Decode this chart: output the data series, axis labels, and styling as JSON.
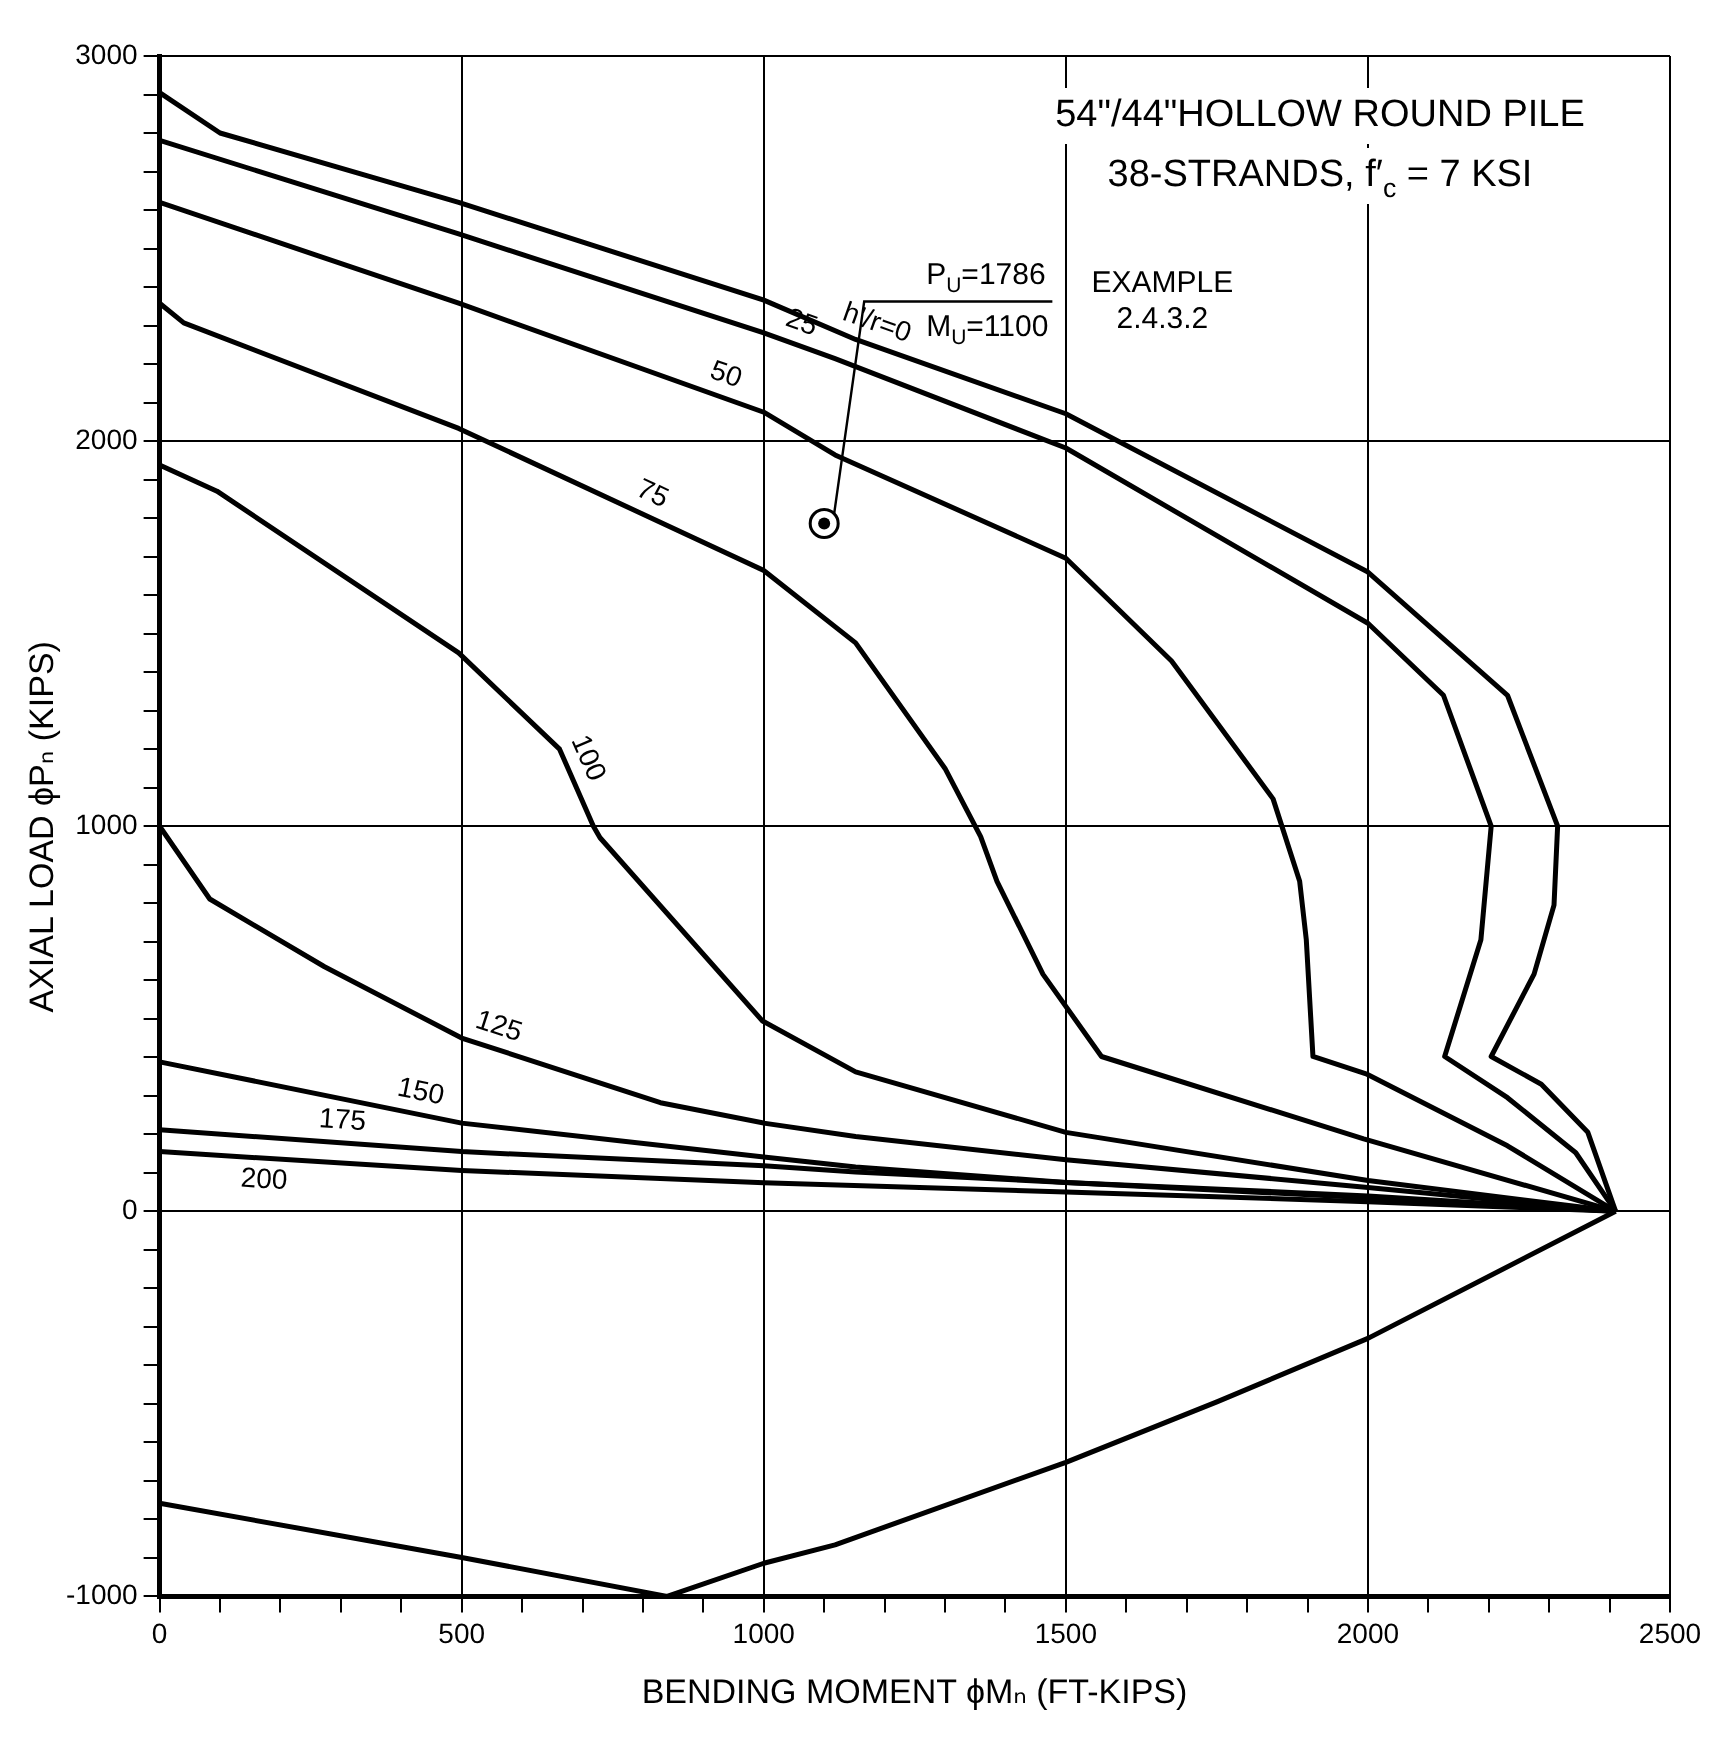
{
  "chart_data": {
    "type": "line",
    "title": "54\"/44\"HOLLOW ROUND PILE",
    "subtitle": "38-STRANDS, f′$_{c}$ = 7 KSI",
    "xlabel": "BENDING MOMENT ϕMₙ (FT-KIPS)",
    "ylabel": "AXIAL LOAD ϕPₙ (KIPS)",
    "xlim": [
      0,
      2500
    ],
    "ylim": [
      -1000,
      3000
    ],
    "xticks": [
      0,
      {
        "value": 100,
        "label": null
      },
      {
        "value": 200,
        "label": null
      },
      {
        "value": 300,
        "label": null
      },
      {
        "value": 400,
        "label": null
      },
      500,
      {
        "value": 600,
        "label": null
      },
      {
        "value": 700,
        "label": null
      },
      {
        "value": 800,
        "label": null
      },
      {
        "value": 900,
        "label": null
      },
      1000,
      {
        "value": 1100,
        "label": null
      },
      {
        "value": 1200,
        "label": null
      },
      {
        "value": 1300,
        "label": null
      },
      {
        "value": 1400,
        "label": null
      },
      1500,
      {
        "value": 1600,
        "label": null
      },
      {
        "value": 1700,
        "label": null
      },
      {
        "value": 1800,
        "label": null
      },
      {
        "value": 1900,
        "label": null
      },
      2000,
      {
        "value": 2100,
        "label": null
      },
      {
        "value": 2200,
        "label": null
      },
      {
        "value": 2300,
        "label": null
      },
      {
        "value": 2400,
        "label": null
      },
      2500
    ],
    "yticks": [
      -1000,
      {
        "value": -900,
        "label": null
      },
      {
        "value": -800,
        "label": null
      },
      {
        "value": -700,
        "label": null
      },
      {
        "value": -600,
        "label": null
      },
      {
        "value": -500,
        "label": null
      },
      {
        "value": -400,
        "label": null
      },
      {
        "value": -300,
        "label": null
      },
      {
        "value": -200,
        "label": null
      },
      {
        "value": -100,
        "label": null
      },
      0,
      {
        "value": 100,
        "label": null
      },
      {
        "value": 200,
        "label": null
      },
      {
        "value": 300,
        "label": null
      },
      {
        "value": 400,
        "label": null
      },
      {
        "value": 500,
        "label": null
      },
      {
        "value": 600,
        "label": null
      },
      {
        "value": 700,
        "label": null
      },
      {
        "value": 800,
        "label": null
      },
      {
        "value": 900,
        "label": null
      },
      1000,
      {
        "value": 1100,
        "label": null
      },
      {
        "value": 1200,
        "label": null
      },
      {
        "value": 1300,
        "label": null
      },
      {
        "value": 1400,
        "label": null
      },
      {
        "value": 1500,
        "label": null
      },
      {
        "value": 1600,
        "label": null
      },
      {
        "value": 1700,
        "label": null
      },
      {
        "value": 1800,
        "label": null
      },
      {
        "value": 1900,
        "label": null
      },
      2000,
      {
        "value": 2100,
        "label": null
      },
      {
        "value": 2200,
        "label": null
      },
      {
        "value": 2300,
        "label": null
      },
      {
        "value": 2400,
        "label": null
      },
      {
        "value": 2500,
        "label": null
      },
      {
        "value": 2600,
        "label": null
      },
      {
        "value": 2700,
        "label": null
      },
      {
        "value": 2800,
        "label": null
      },
      {
        "value": 2900,
        "label": null
      },
      3000
    ],
    "grid": true,
    "legend": false,
    "line_style": "solid",
    "series": [
      {
        "name": "h'/r=0",
        "color": "#000000",
        "x": [
          0,
          100,
          495,
          1000,
          1152,
          1500,
          2000,
          2231,
          2314,
          2308,
          2275,
          2204,
          2287,
          2364,
          2410
        ],
        "values": [
          2905,
          2800,
          2620,
          2366,
          2264,
          2071,
          1660,
          1340,
          1000,
          795,
          616,
          402,
          330,
          205,
          0
        ]
      },
      {
        "name": "25",
        "color": "#000000",
        "x": [
          0,
          495,
          1000,
          1118,
          1500,
          2000,
          2125,
          2204,
          2187,
          2127,
          2231,
          2344,
          2410
        ],
        "values": [
          2781,
          2538,
          2281,
          2214,
          1982,
          1527,
          1340,
          1000,
          705,
          402,
          295,
          152,
          0
        ]
      },
      {
        "name": "50",
        "color": "#000000",
        "x": [
          0,
          495,
          1000,
          1118,
          1500,
          1675,
          1843,
          1887,
          1898,
          1909,
          1997,
          2231,
          2410
        ],
        "values": [
          2620,
          2358,
          2075,
          1964,
          1696,
          1429,
          1071,
          857,
          705,
          402,
          357,
          170,
          0
        ]
      },
      {
        "name": "75",
        "color": "#000000",
        "x": [
          0,
          40,
          495,
          1000,
          1152,
          1300,
          1359,
          1386,
          1462,
          1559,
          1993,
          2410
        ],
        "values": [
          2358,
          2307,
          2033,
          1664,
          1476,
          1150,
          973,
          857,
          616,
          402,
          188,
          0
        ]
      },
      {
        "name": "100",
        "color": "#000000",
        "x": [
          0,
          95,
          495,
          662,
          718,
          729,
          998,
          1152,
          1500,
          2000,
          2410
        ],
        "values": [
          1938,
          1870,
          1450,
          1200,
          1000,
          970,
          494,
          362,
          205,
          80,
          0
        ]
      },
      {
        "name": "125",
        "color": "#000000",
        "x": [
          0,
          83,
          273,
          500,
          829,
          1000,
          1152,
          1500,
          2000,
          2410
        ],
        "values": [
          1000,
          811,
          635,
          450,
          282,
          229,
          194,
          134,
          62,
          0
        ]
      },
      {
        "name": "150",
        "color": "#000000",
        "x": [
          0,
          500,
          1000,
          1152,
          1500,
          2000,
          2410
        ],
        "values": [
          388,
          229,
          141,
          115,
          75,
          35,
          0
        ]
      },
      {
        "name": "175",
        "color": "#000000",
        "x": [
          0,
          500,
          1000,
          1152,
          1500,
          2000,
          2410
        ],
        "values": [
          212,
          155,
          118,
          102,
          75,
          40,
          0
        ]
      },
      {
        "name": "200",
        "color": "#000000",
        "x": [
          0,
          500,
          1000,
          1500,
          2000,
          2410
        ],
        "values": [
          155,
          106,
          74,
          50,
          25,
          0
        ]
      },
      {
        "color": "#000000",
        "x": [
          0,
          500,
          840,
          1000,
          1118,
          1500,
          1750,
          2000,
          2410
        ],
        "values": [
          -758,
          -899,
          -1000,
          -914,
          -866,
          -652,
          -495,
          -330,
          0
        ]
      },
      {
        "type": "scatter",
        "color": "#000000",
        "x": [
          1100
        ],
        "values": [
          1786
        ]
      }
    ],
    "annotations": [
      {
        "text": "P$_{U}$=1786",
        "x": 1100,
        "y": 1786
      },
      {
        "text": "M$_{U}$=1100",
        "x": 1100,
        "y": 1786
      },
      "EXAMPLE 2.4.3.2"
    ]
  }
}
